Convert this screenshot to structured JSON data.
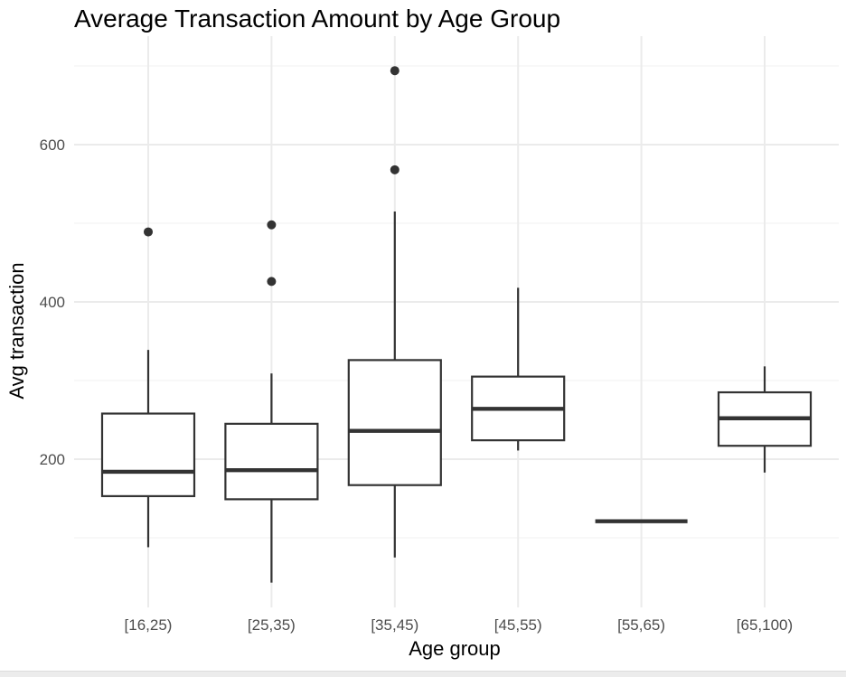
{
  "chart_data": {
    "type": "boxplot",
    "title": "Average Transaction Amount by Age Group",
    "xlabel": "Age group",
    "ylabel": "Avg transaction",
    "categories": [
      "[16,25)",
      "[25,35)",
      "[35,45)",
      "[45,55)",
      "[55,65)",
      "[65,100)"
    ],
    "y_ticks": [
      200,
      400,
      600
    ],
    "ylim": [
      25,
      725
    ],
    "grid": true,
    "boxes": [
      {
        "category": "[16,25)",
        "whisker_low": 88,
        "q1": 153,
        "median": 184,
        "q3": 258,
        "whisker_high": 339,
        "outliers": [
          489
        ]
      },
      {
        "category": "[25,35)",
        "whisker_low": 43,
        "q1": 149,
        "median": 186,
        "q3": 245,
        "whisker_high": 309,
        "outliers": [
          426,
          498
        ]
      },
      {
        "category": "[35,45)",
        "whisker_low": 75,
        "q1": 167,
        "median": 236,
        "q3": 326,
        "whisker_high": 515,
        "outliers": [
          568,
          694
        ]
      },
      {
        "category": "[45,55)",
        "whisker_low": 211,
        "q1": 224,
        "median": 264,
        "q3": 305,
        "whisker_high": 418,
        "outliers": []
      },
      {
        "category": "[55,65)",
        "whisker_low": 121,
        "q1": 121,
        "median": 121,
        "q3": 121,
        "whisker_high": 121,
        "outliers": []
      },
      {
        "category": "[65,100)",
        "whisker_low": 183,
        "q1": 217,
        "median": 252,
        "q3": 285,
        "whisker_high": 318,
        "outliers": []
      }
    ],
    "colors": {
      "box_line": "#333333",
      "box_fill": "#ffffff",
      "grid_major": "#ebebeb",
      "grid_minor": "#f3f3f3",
      "tick_text": "#4d4d4d"
    }
  }
}
